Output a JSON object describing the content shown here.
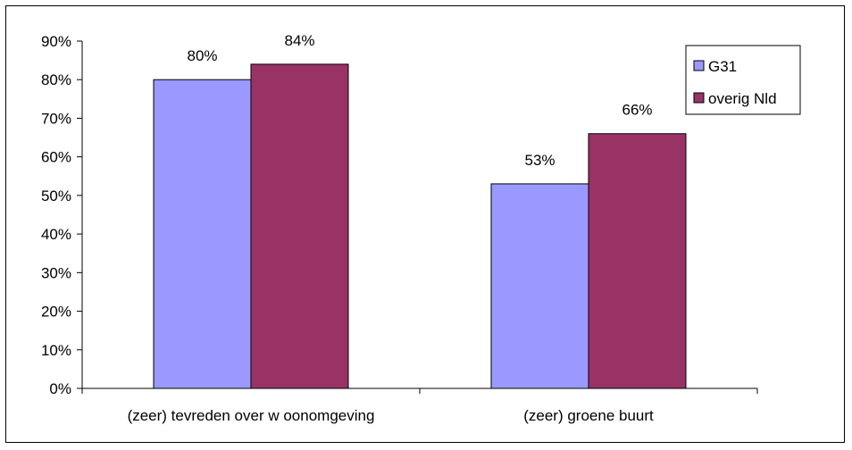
{
  "chart_data": {
    "type": "bar",
    "categories": [
      "(zeer) tevreden over w oonomgeving",
      "(zeer) groene buurt"
    ],
    "series": [
      {
        "name": "G31",
        "values": [
          80,
          53
        ],
        "color": "#9999FF"
      },
      {
        "name": "overig Nld",
        "values": [
          84,
          66
        ],
        "color": "#993366"
      }
    ],
    "data_labels": [
      [
        "80%",
        "53%"
      ],
      [
        "84%",
        "66%"
      ]
    ],
    "y_ticks": [
      "0%",
      "10%",
      "20%",
      "30%",
      "40%",
      "50%",
      "60%",
      "70%",
      "80%",
      "90%"
    ],
    "ylim": [
      0,
      90
    ],
    "y_unit": "%",
    "grid": false,
    "legend_position": "top-right",
    "title": "",
    "xlabel": "",
    "ylabel": ""
  }
}
